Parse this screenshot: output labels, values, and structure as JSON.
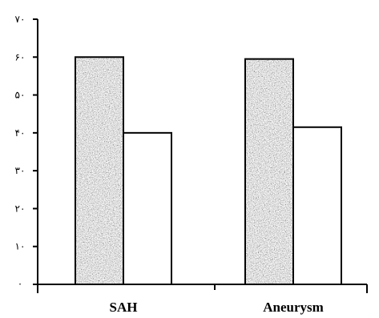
{
  "chart_data": {
    "type": "bar",
    "categories": [
      "SAH",
      "Aneurysm"
    ],
    "series": [
      {
        "values": [
          60,
          59.5
        ],
        "color": "#9a9a9a",
        "pattern": "speckled-gray"
      },
      {
        "values": [
          40,
          41.5
        ],
        "color": "#ffffff",
        "pattern": "none"
      }
    ],
    "ylim": [
      0,
      70
    ],
    "yticks": [
      0,
      10,
      20,
      30,
      40,
      50,
      60,
      70
    ],
    "ytick_labels": [
      "·",
      "١٠",
      "٢٠",
      "٣٠",
      "۴٠",
      "۵٠",
      "۶٠",
      "٧٠"
    ],
    "title": "",
    "xlabel": "",
    "ylabel": "",
    "grid": false,
    "legend": "none"
  }
}
